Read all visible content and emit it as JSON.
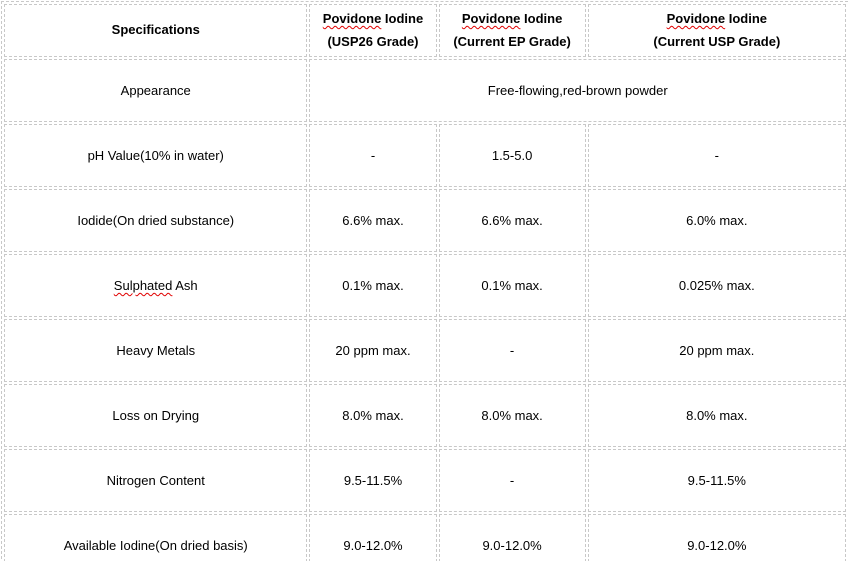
{
  "table": {
    "colors": {
      "border": "#c8c8c8",
      "squiggle_red": "#e00000",
      "text": "#000000",
      "background": "#ffffff"
    },
    "header": {
      "spec_label": "Specifications",
      "columns": [
        {
          "line1_word": "Povidone",
          "line1_rest": " Iodine",
          "line2": "(USP26 Grade)"
        },
        {
          "line1_word": "Povidone",
          "line1_rest": " Iodine",
          "line2": "(Current EP Grade)"
        },
        {
          "line1_word": "Povidone",
          "line1_rest": " Iodine",
          "line2": "(Current USP Grade)"
        }
      ]
    },
    "appearance_row": {
      "label": "Appearance",
      "value": "Free-flowing,red-brown powder"
    },
    "rows": [
      {
        "label": "pH Value(10% in water)",
        "values": [
          "-",
          "1.5-5.0",
          "-"
        ]
      },
      {
        "label": "Iodide(On dried substance)",
        "values": [
          "6.6% max.",
          "6.6% max.",
          "6.0% max."
        ]
      },
      {
        "label_parts": [
          "Sulphated",
          " Ash"
        ],
        "values": [
          "0.1% max.",
          "0.1% max.",
          "0.025% max."
        ]
      },
      {
        "label": "Heavy Metals",
        "values": [
          "20 ppm max.",
          "-",
          "20 ppm max."
        ]
      },
      {
        "label": "Loss on Drying",
        "values": [
          "8.0% max.",
          "8.0% max.",
          "8.0% max."
        ]
      },
      {
        "label": "Nitrogen Content",
        "values": [
          "9.5-11.5%",
          "-",
          "9.5-11.5%"
        ]
      },
      {
        "label": "Available Iodine(On dried basis)",
        "values": [
          "9.0-12.0%",
          "9.0-12.0%",
          "9.0-12.0%"
        ]
      }
    ]
  }
}
